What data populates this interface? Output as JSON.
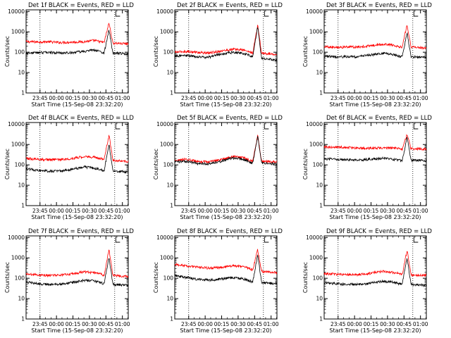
{
  "chart_data": {
    "type": "line",
    "panel_grid": {
      "columns": 3,
      "rows": 3
    },
    "title_suffix": "BLACK = Events, RED = LLD",
    "xlabel": "Start Time (15-Sep-08 23:32:20)",
    "ylabel": "Counts/sec",
    "y_scale": "log",
    "ylim": [
      1,
      12000
    ],
    "y_ticks": [
      "1",
      "10",
      "100",
      "1000",
      "10000"
    ],
    "x_range_minutes_after_start": [
      0,
      93
    ],
    "x_ticks": [
      "23:45",
      "00:00",
      "00:15",
      "00:30",
      "00:45",
      "01:00"
    ],
    "x_tick_minutes": [
      12.67,
      27.67,
      42.67,
      57.67,
      72.67,
      87.67
    ],
    "vertical_dotted_lines": [
      "23:45",
      "00:53"
    ],
    "bracket_marker": "00:54",
    "series_colors": {
      "events": "#000000",
      "lld": "#ff0000"
    },
    "panels": [
      {
        "detector": "Det 1f",
        "events": [
          90,
          95,
          100,
          92,
          95,
          110,
          130,
          105,
          90,
          1200,
          90,
          85
        ],
        "lld": [
          330,
          320,
          330,
          300,
          310,
          330,
          380,
          320,
          300,
          2800,
          280,
          260
        ]
      },
      {
        "detector": "Det 2f",
        "events": [
          65,
          70,
          60,
          55,
          80,
          100,
          90,
          70,
          60,
          2000,
          50,
          40
        ],
        "lld": [
          100,
          110,
          100,
          90,
          110,
          140,
          130,
          105,
          90,
          2200,
          90,
          80
        ]
      },
      {
        "detector": "Det 3f",
        "events": [
          65,
          60,
          60,
          60,
          70,
          90,
          80,
          65,
          60,
          900,
          60,
          55
        ],
        "lld": [
          190,
          180,
          180,
          180,
          200,
          250,
          230,
          190,
          180,
          2400,
          180,
          160
        ]
      },
      {
        "detector": "Det 4f",
        "events": [
          65,
          55,
          50,
          50,
          60,
          80,
          70,
          60,
          50,
          1000,
          50,
          45
        ],
        "lld": [
          210,
          190,
          180,
          180,
          200,
          260,
          240,
          200,
          180,
          3000,
          170,
          150
        ]
      },
      {
        "detector": "Det 5f",
        "events": [
          140,
          150,
          120,
          110,
          140,
          220,
          190,
          140,
          120,
          2600,
          120,
          110
        ],
        "lld": [
          160,
          190,
          150,
          140,
          170,
          260,
          230,
          170,
          150,
          2800,
          150,
          140
        ]
      },
      {
        "detector": "Det 6f",
        "events": [
          200,
          190,
          180,
          170,
          190,
          210,
          190,
          170,
          160,
          2200,
          170,
          160
        ],
        "lld": [
          780,
          740,
          720,
          680,
          660,
          700,
          680,
          620,
          600,
          3200,
          620,
          600
        ]
      },
      {
        "detector": "Det 7f",
        "events": [
          65,
          55,
          50,
          50,
          60,
          80,
          75,
          60,
          55,
          1100,
          50,
          45
        ],
        "lld": [
          160,
          150,
          140,
          140,
          160,
          210,
          190,
          160,
          140,
          2600,
          140,
          120
        ]
      },
      {
        "detector": "Det 8f",
        "events": [
          140,
          110,
          90,
          80,
          90,
          110,
          95,
          75,
          65,
          1500,
          60,
          55
        ],
        "lld": [
          480,
          400,
          350,
          320,
          340,
          420,
          380,
          300,
          260,
          2600,
          220,
          190
        ]
      },
      {
        "detector": "Det 9f",
        "events": [
          60,
          55,
          50,
          50,
          55,
          70,
          65,
          55,
          50,
          1000,
          50,
          45
        ],
        "lld": [
          170,
          160,
          150,
          150,
          170,
          220,
          200,
          170,
          150,
          2400,
          150,
          140
        ]
      }
    ],
    "profile_x_minutes": [
      0,
      10,
      20,
      30,
      40,
      53,
      62,
      68,
      71,
      75.5,
      79,
      93
    ]
  }
}
